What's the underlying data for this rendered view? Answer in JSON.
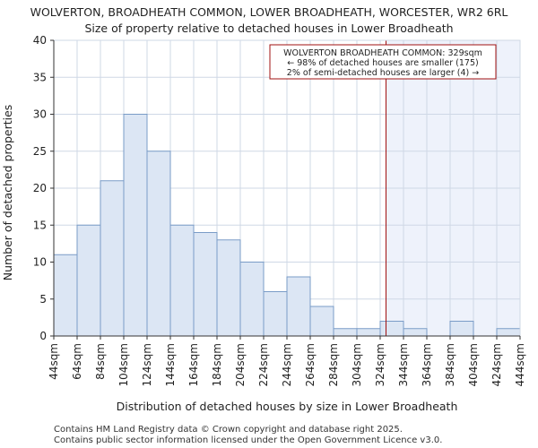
{
  "chart_data": {
    "type": "bar",
    "title": "WOLVERTON, BROADHEATH COMMON, LOWER BROADHEATH, WORCESTER, WR2 6RL",
    "subtitle": "Size of property relative to detached houses in Lower Broadheath",
    "xlabel": "Distribution of detached houses by size in Lower Broadheath",
    "ylabel": "Number of detached properties",
    "ylim": [
      0,
      40
    ],
    "yticks": [
      0,
      5,
      10,
      15,
      20,
      25,
      30,
      35,
      40
    ],
    "bin_edges": [
      44,
      64,
      84,
      104,
      124,
      144,
      164,
      184,
      204,
      224,
      244,
      264,
      284,
      304,
      324,
      344,
      364,
      384,
      404,
      424,
      444
    ],
    "tick_labels": [
      "44sqm",
      "64sqm",
      "84sqm",
      "104sqm",
      "124sqm",
      "144sqm",
      "164sqm",
      "184sqm",
      "204sqm",
      "224sqm",
      "244sqm",
      "264sqm",
      "284sqm",
      "304sqm",
      "324sqm",
      "344sqm",
      "364sqm",
      "384sqm",
      "404sqm",
      "424sqm",
      "444sqm"
    ],
    "values": [
      11,
      15,
      21,
      30,
      25,
      15,
      14,
      13,
      10,
      6,
      8,
      4,
      1,
      1,
      2,
      1,
      0,
      2,
      0,
      1
    ],
    "marker_value": 329,
    "grid": true,
    "annotation": {
      "line1": "WOLVERTON BROADHEATH COMMON: 329sqm",
      "line2": "← 98% of detached houses are smaller (175)",
      "line3": "2% of semi-detached houses are larger (4) →"
    },
    "colors": {
      "bar_fill": "#dce6f4",
      "bar_edge": "#7a9cc7",
      "marker": "#a01010",
      "highlight": "#eef2fb"
    }
  },
  "footer": {
    "line1": "Contains HM Land Registry data © Crown copyright and database right 2025.",
    "line2": "Contains public sector information licensed under the Open Government Licence v3.0."
  }
}
